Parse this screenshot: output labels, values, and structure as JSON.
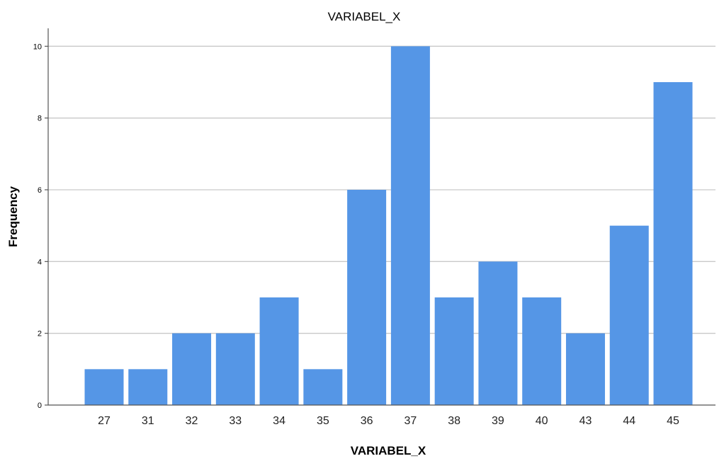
{
  "chart_data": {
    "type": "bar",
    "title": "VARIABEL_X",
    "xlabel": "VARIABEL_X",
    "ylabel": "Frequency",
    "categories": [
      "27",
      "31",
      "32",
      "33",
      "34",
      "35",
      "36",
      "37",
      "38",
      "39",
      "40",
      "43",
      "44",
      "45"
    ],
    "values": [
      1,
      1,
      2,
      2,
      3,
      1,
      6,
      10,
      3,
      4,
      3,
      2,
      5,
      9
    ],
    "ylim": [
      0,
      10.5
    ],
    "yticks": [
      "0",
      "2",
      "4",
      "6",
      "8",
      "10"
    ],
    "grid": true,
    "bar_color": "#5596e6",
    "grid_color": "#c9c9c9"
  }
}
